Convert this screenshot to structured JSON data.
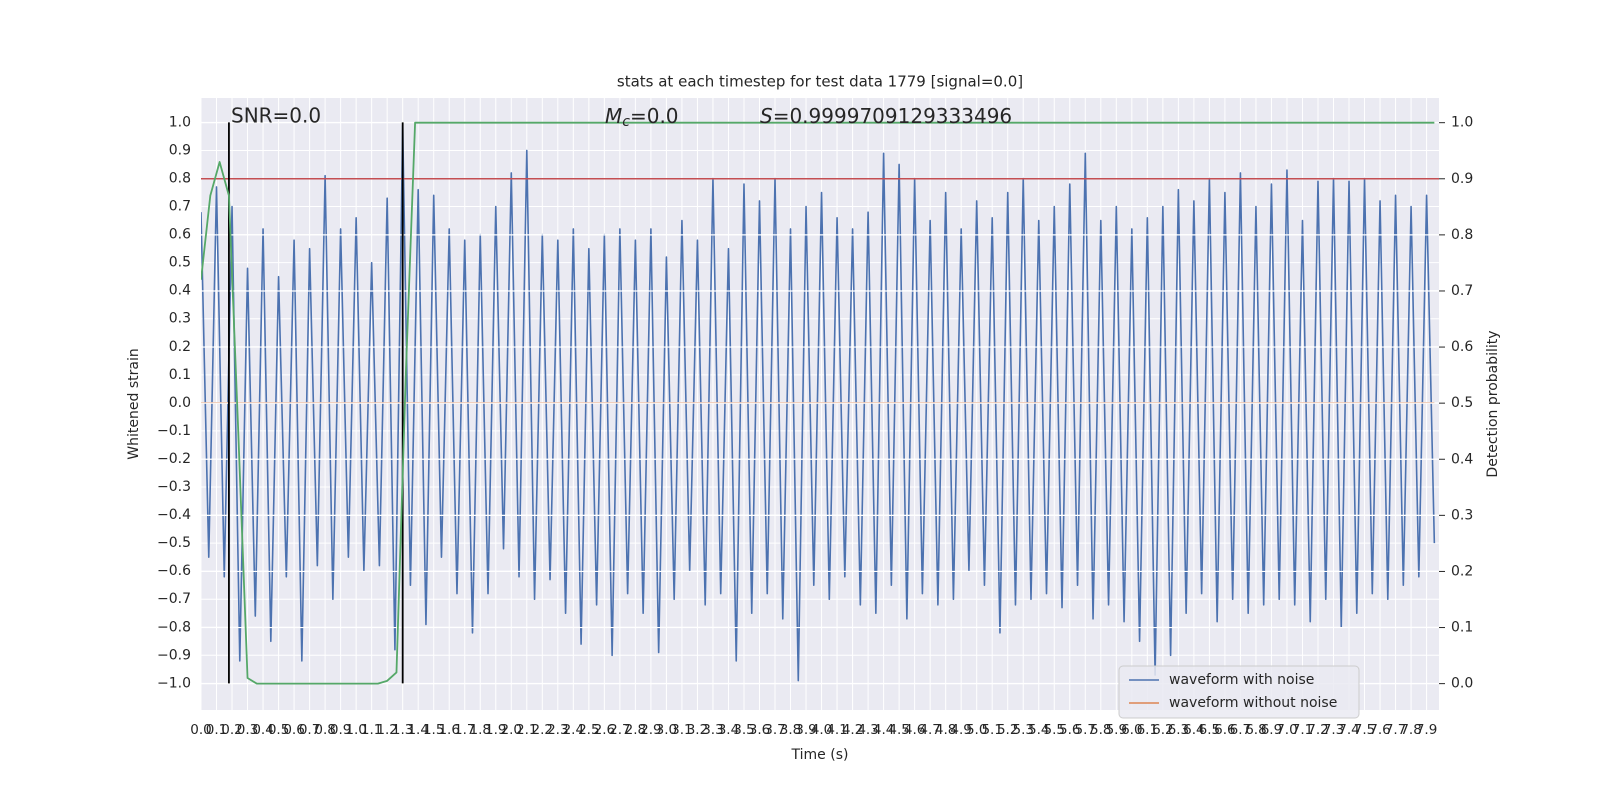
{
  "chart_data": {
    "type": "line",
    "title": "stats at each timestep for test data 1779 [signal=0.0]",
    "x_label": "Time (s)",
    "y_label": "Whitened strain",
    "y2_label": "Detection probability",
    "annotations": [
      "SNR=0.0",
      {
        "main": "M",
        "sub": "c",
        "rest": "=0.0"
      },
      {
        "main": "S",
        "rest": "=0.9999709129333496"
      }
    ],
    "grid": true,
    "legend_loc": "lower right",
    "xlim": [
      0,
      7.98
    ],
    "ylim": [
      -1.095,
      1.087
    ],
    "y2lim": [
      -0.047,
      1.044
    ],
    "xticks": [
      {
        "value": 0,
        "label": "0.0"
      },
      0.1,
      0.2,
      0.3,
      0.4,
      0.5,
      0.6,
      0.7,
      0.8,
      0.9,
      {
        "value": 1,
        "label": "1.0"
      },
      1.1,
      1.2,
      1.3,
      1.4,
      1.5,
      1.6,
      1.7,
      1.8,
      1.9,
      {
        "value": 2,
        "label": "2.0"
      },
      2.1,
      2.2,
      2.3,
      2.4,
      2.5,
      2.6,
      2.7,
      2.8,
      2.9,
      {
        "value": 3,
        "label": "3.0"
      },
      3.1,
      3.2,
      3.3,
      3.4,
      3.5,
      3.6,
      3.7,
      3.8,
      3.9,
      {
        "value": 4,
        "label": "4.0"
      },
      4.1,
      4.2,
      4.3,
      4.4,
      4.5,
      4.6,
      4.7,
      4.8,
      4.9,
      {
        "value": 5,
        "label": "5.0"
      },
      5.1,
      5.2,
      5.3,
      5.4,
      5.5,
      5.6,
      5.7,
      5.8,
      5.9,
      {
        "value": 6,
        "label": "6.0"
      },
      6.1,
      6.2,
      6.3,
      6.4,
      6.5,
      6.6,
      6.7,
      6.8,
      6.9,
      {
        "value": 7,
        "label": "7.0"
      },
      7.1,
      7.2,
      7.3,
      7.4,
      7.5,
      7.6,
      7.7,
      7.8,
      7.9
    ],
    "yticks": [
      {
        "value": -1,
        "label": "−1.0"
      },
      {
        "value": -0.9,
        "label": "−0.9"
      },
      {
        "value": -0.8,
        "label": "−0.8"
      },
      {
        "value": -0.7,
        "label": "−0.7"
      },
      {
        "value": -0.6,
        "label": "−0.6"
      },
      {
        "value": -0.5,
        "label": "−0.5"
      },
      {
        "value": -0.4,
        "label": "−0.4"
      },
      {
        "value": -0.3,
        "label": "−0.3"
      },
      {
        "value": -0.2,
        "label": "−0.2"
      },
      {
        "value": -0.1,
        "label": "−0.1"
      },
      {
        "value": 0,
        "label": "0.0"
      },
      0.1,
      0.2,
      0.3,
      0.4,
      0.5,
      0.6,
      0.7,
      0.8,
      0.9,
      {
        "value": 1,
        "label": "1.0"
      }
    ],
    "y2ticks": [
      {
        "value": 0,
        "label": "0.0"
      },
      0.1,
      0.2,
      0.3,
      0.4,
      0.5,
      0.6,
      0.7,
      0.8,
      0.9,
      {
        "value": 1,
        "label": "1.0"
      }
    ],
    "series": [
      {
        "name": "waveform with noise",
        "color": "#4c72b0",
        "x": [
          0,
          0.05,
          0.1,
          0.15,
          0.2,
          0.25,
          0.3,
          0.35,
          0.4,
          0.45,
          0.5,
          0.55,
          0.6,
          0.65,
          0.7,
          0.75,
          0.8,
          0.85,
          0.9,
          0.95,
          1,
          1.05,
          1.1,
          1.15,
          1.2,
          1.25,
          1.3,
          1.35,
          1.4,
          1.45,
          1.5,
          1.55,
          1.6,
          1.65,
          1.7,
          1.75,
          1.8,
          1.85,
          1.9,
          1.95,
          2,
          2.05,
          2.1,
          2.15,
          2.2,
          2.25,
          2.3,
          2.35,
          2.4,
          2.45,
          2.5,
          2.55,
          2.6,
          2.65,
          2.7,
          2.75,
          2.8,
          2.85,
          2.9,
          2.95,
          3,
          3.05,
          3.1,
          3.15,
          3.2,
          3.25,
          3.3,
          3.35,
          3.4,
          3.45,
          3.5,
          3.55,
          3.6,
          3.65,
          3.7,
          3.75,
          3.8,
          3.85,
          3.9,
          3.95,
          4,
          4.05,
          4.1,
          4.15,
          4.2,
          4.25,
          4.3,
          4.35,
          4.4,
          4.45,
          4.5,
          4.55,
          4.6,
          4.65,
          4.7,
          4.75,
          4.8,
          4.85,
          4.9,
          4.95,
          5,
          5.05,
          5.1,
          5.15,
          5.2,
          5.25,
          5.3,
          5.35,
          5.4,
          5.45,
          5.5,
          5.55,
          5.6,
          5.65,
          5.7,
          5.75,
          5.8,
          5.85,
          5.9,
          5.95,
          6,
          6.05,
          6.1,
          6.15,
          6.2,
          6.25,
          6.3,
          6.35,
          6.4,
          6.45,
          6.5,
          6.55,
          6.6,
          6.65,
          6.7,
          6.75,
          6.8,
          6.85,
          6.9,
          6.95,
          7,
          7.05,
          7.1,
          7.15,
          7.2,
          7.25,
          7.3,
          7.35,
          7.4,
          7.45,
          7.5,
          7.55,
          7.6,
          7.65,
          7.7,
          7.75,
          7.8,
          7.85,
          7.9,
          7.95
        ],
        "values": [
          0.68,
          -0.55,
          0.77,
          -0.62,
          0.7,
          -0.92,
          0.48,
          -0.76,
          0.62,
          -0.85,
          0.45,
          -0.62,
          0.58,
          -0.92,
          0.55,
          -0.58,
          0.81,
          -0.7,
          0.62,
          -0.55,
          0.66,
          -0.6,
          0.5,
          -0.58,
          0.73,
          -0.88,
          0.99,
          -0.65,
          0.76,
          -0.79,
          0.74,
          -0.55,
          0.62,
          -0.68,
          0.58,
          -0.82,
          0.6,
          -0.68,
          0.7,
          -0.52,
          0.82,
          -0.62,
          0.9,
          -0.7,
          0.6,
          -0.63,
          0.58,
          -0.75,
          0.62,
          -0.86,
          0.55,
          -0.72,
          0.6,
          -0.9,
          0.62,
          -0.68,
          0.58,
          -0.75,
          0.62,
          -0.89,
          0.52,
          -0.7,
          0.65,
          -0.6,
          0.58,
          -0.72,
          0.8,
          -0.68,
          0.55,
          -0.92,
          0.78,
          -0.75,
          0.72,
          -0.68,
          0.8,
          -0.77,
          0.62,
          -0.99,
          0.7,
          -0.65,
          0.75,
          -0.7,
          0.66,
          -0.62,
          0.62,
          -0.72,
          0.68,
          -0.75,
          0.89,
          -0.65,
          0.85,
          -0.77,
          0.8,
          -0.68,
          0.65,
          -0.72,
          0.75,
          -0.7,
          0.62,
          -0.6,
          0.72,
          -0.65,
          0.66,
          -0.82,
          0.75,
          -0.72,
          0.8,
          -0.7,
          0.65,
          -0.68,
          0.7,
          -0.73,
          0.78,
          -0.65,
          0.89,
          -0.77,
          0.65,
          -0.72,
          0.7,
          -0.78,
          0.62,
          -0.85,
          0.66,
          -0.97,
          0.7,
          -0.9,
          0.76,
          -0.75,
          0.72,
          -0.68,
          0.8,
          -0.78,
          0.75,
          -0.7,
          0.82,
          -0.75,
          0.7,
          -0.72,
          0.78,
          -0.7,
          0.83,
          -0.72,
          0.65,
          -0.78,
          0.79,
          -0.7,
          0.8,
          -0.8,
          0.79,
          -0.75,
          0.8,
          -0.68,
          0.72,
          -0.7,
          0.74,
          -0.65,
          0.7,
          -0.62,
          0.74,
          -0.5
        ]
      },
      {
        "name": "waveform without noise",
        "color": "#dd8452",
        "x": [
          0,
          7.95
        ],
        "values": [
          0,
          0
        ]
      },
      {
        "color": "#55a868",
        "axis": "y2",
        "x": [
          0,
          0.06,
          0.12,
          0.18,
          0.24,
          0.3,
          0.36,
          1.14,
          1.2,
          1.26,
          1.32,
          1.38,
          7.95
        ],
        "values": [
          0.72,
          0.87,
          0.93,
          0.87,
          0.45,
          0.01,
          0,
          0,
          0.005,
          0.02,
          0.55,
          1,
          1
        ]
      }
    ],
    "hlines": [
      {
        "value": 0.9,
        "axis": "y2",
        "color": "#c44e52"
      }
    ],
    "vlines": {
      "x": [
        0.18,
        1.3
      ],
      "ymin": -1,
      "ymax": 1,
      "color": "#000000"
    }
  }
}
